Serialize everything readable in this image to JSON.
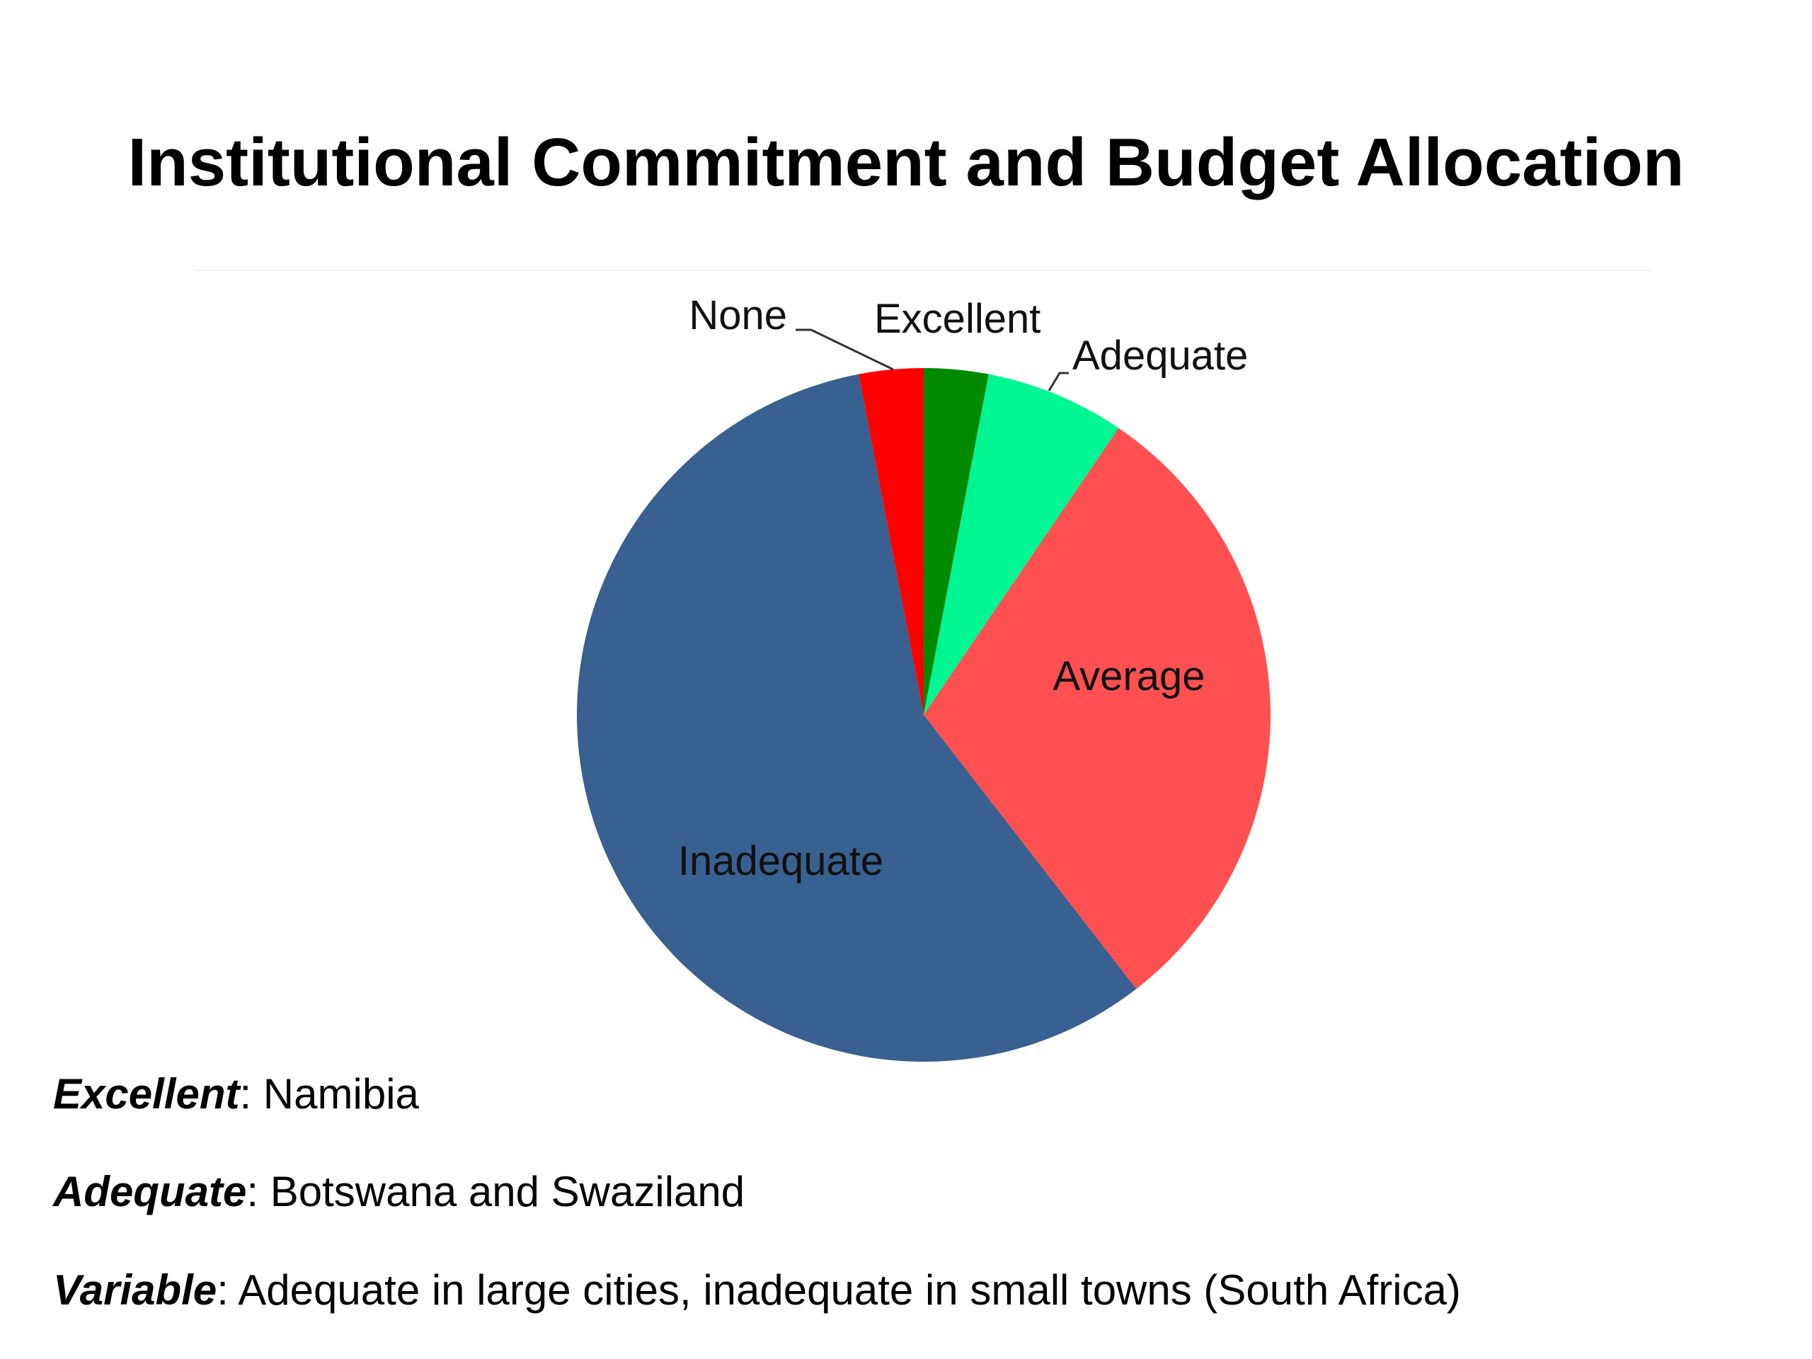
{
  "chart_data": {
    "type": "pie",
    "title": "Institutional Commitment and Budget Allocation",
    "slices": [
      {
        "label": "Excellent",
        "value": 3,
        "color": "#008a00"
      },
      {
        "label": "Adequate",
        "value": 6.5,
        "color": "#00f593"
      },
      {
        "label": "Average",
        "value": 30,
        "color": "#fe5050"
      },
      {
        "label": "Inadequate",
        "value": 57.5,
        "color": "#386090"
      },
      {
        "label": "None",
        "value": 3,
        "color": "#fe0000"
      }
    ],
    "start_angle_deg": 0,
    "direction": "clockwise",
    "legend": "none"
  },
  "notes": [
    {
      "term": "Excellent",
      "text": ": Namibia"
    },
    {
      "term": "Adequate",
      "text": ": Botswana and Swaziland"
    },
    {
      "term": "Variable",
      "text": ": Adequate in large cities, inadequate in small towns (South Africa)"
    }
  ]
}
